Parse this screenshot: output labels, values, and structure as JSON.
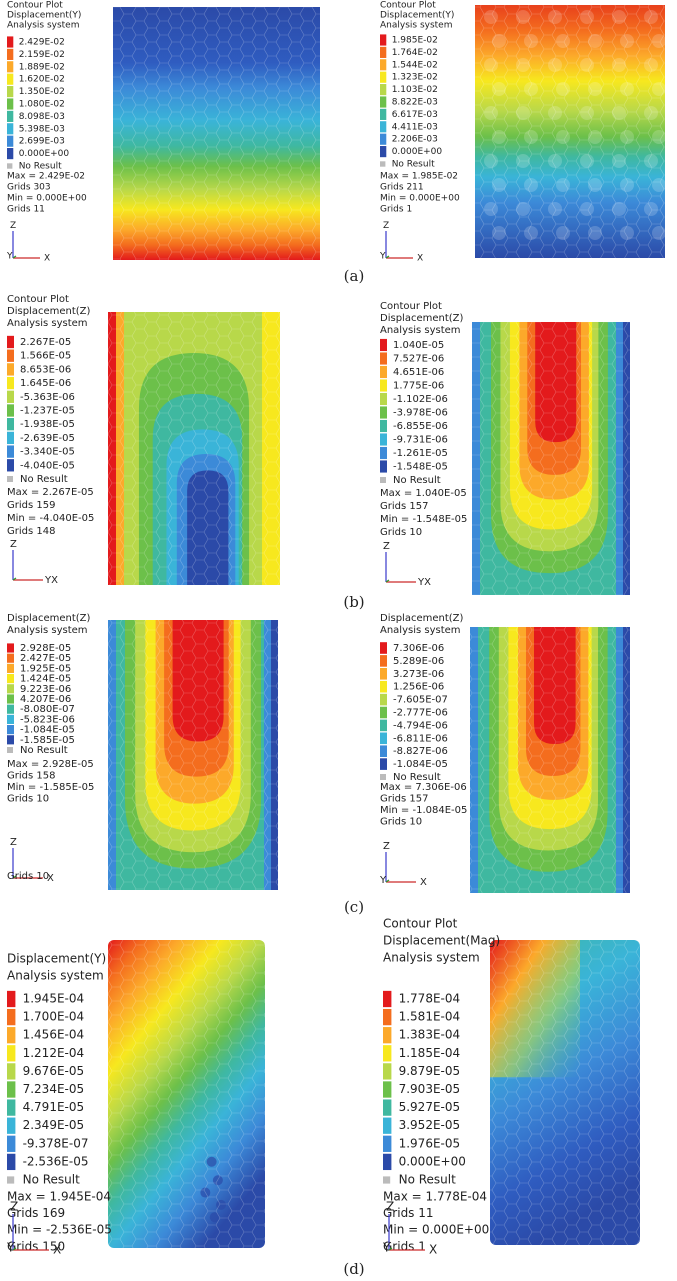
{
  "panels": [
    {
      "header": [
        "Contour Plot",
        "Displacement(Y)",
        "Analysis system"
      ],
      "legend": [
        "2.429E-02",
        "2.159E-02",
        "1.889E-02",
        "1.620E-02",
        "1.350E-02",
        "1.080E-02",
        "8.098E-03",
        "5.398E-03",
        "2.699E-03",
        "0.000E+00"
      ],
      "no_result": "No Result",
      "stats": [
        "Max = 2.429E-02",
        "Grids 303",
        "Min = 0.000E+00",
        "Grids 11"
      ],
      "axes": [
        "Z",
        "Y",
        "X"
      ]
    },
    {
      "header": [
        "Contour Plot",
        "Displacement(Y)",
        "Analysis system"
      ],
      "legend": [
        "1.985E-02",
        "1.764E-02",
        "1.544E-02",
        "1.323E-02",
        "1.103E-02",
        "8.822E-03",
        "6.617E-03",
        "4.411E-03",
        "2.206E-03",
        "0.000E+00"
      ],
      "no_result": "No Result",
      "stats": [
        "Max = 1.985E-02",
        "Grids 211",
        "Min = 0.000E+00",
        "Grids 1"
      ],
      "axes": [
        "Z",
        "Y",
        "X"
      ]
    },
    {
      "header": [
        "Contour Plot",
        "Displacement(Z)",
        "Analysis system"
      ],
      "legend": [
        "2.267E-05",
        "1.566E-05",
        "8.653E-06",
        "1.645E-06",
        "-5.363E-06",
        "-1.237E-05",
        "-1.938E-05",
        "-2.639E-05",
        "-3.340E-05",
        "-4.040E-05"
      ],
      "no_result": "No Result",
      "stats": [
        "Max = 2.267E-05",
        "Grids 159",
        "Min = -4.040E-05",
        "Grids 148"
      ],
      "axes": [
        "Z",
        "YX"
      ]
    },
    {
      "header": [
        "Contour Plot",
        "Displacement(Z)",
        "Analysis system"
      ],
      "legend": [
        "1.040E-05",
        "7.527E-06",
        "4.651E-06",
        "1.775E-06",
        "-1.102E-06",
        "-3.978E-06",
        "-6.855E-06",
        "-9.731E-06",
        "-1.261E-05",
        "-1.548E-05"
      ],
      "no_result": "No Result",
      "stats": [
        "Max = 1.040E-05",
        "Grids 157",
        "Min = -1.548E-05",
        "Grids 10"
      ],
      "axes": [
        "Z",
        "YX"
      ]
    },
    {
      "header": [
        "Displacement(Z)",
        "Analysis system"
      ],
      "legend": [
        "2.928E-05",
        "2.427E-05",
        "1.925E-05",
        "1.424E-05",
        "9.223E-06",
        "4.207E-06",
        "-8.080E-07",
        "-5.823E-06",
        "-1.084E-05",
        "-1.585E-05"
      ],
      "no_result": "No Result",
      "stats": [
        "Max = 2.928E-05",
        "Grids 158",
        "Min = -1.585E-05",
        "Grids 10"
      ],
      "axes": [
        "Z",
        "Grids 10",
        "X"
      ]
    },
    {
      "header": [
        "Displacement(Z)",
        "Analysis system"
      ],
      "legend": [
        "7.306E-06",
        "5.289E-06",
        "3.273E-06",
        "1.256E-06",
        "-7.605E-07",
        "-2.777E-06",
        "-4.794E-06",
        "-6.811E-06",
        "-8.827E-06",
        "-1.084E-05"
      ],
      "no_result": "No Result",
      "stats": [
        "Max = 7.306E-06",
        "Grids 157",
        "Min = -1.084E-05",
        "Grids 10"
      ],
      "axes": [
        "Z",
        "Y",
        "X"
      ]
    },
    {
      "header": [
        "Displacement(Y)",
        "Analysis system"
      ],
      "legend": [
        "1.945E-04",
        "1.700E-04",
        "1.456E-04",
        "1.212E-04",
        "9.676E-05",
        "7.234E-05",
        "4.791E-05",
        "2.349E-05",
        "-9.378E-07",
        "-2.536E-05"
      ],
      "no_result": "No Result",
      "stats": [
        "Max = 1.945E-04",
        "Grids 169",
        "Min = -2.536E-05",
        "Grids 150"
      ],
      "axes": [
        "Z",
        "Y",
        "X"
      ]
    },
    {
      "header": [
        "Contour Plot",
        "Displacement(Mag)",
        "Analysis system"
      ],
      "legend": [
        "1.778E-04",
        "1.581E-04",
        "1.383E-04",
        "1.185E-04",
        "9.879E-05",
        "7.903E-05",
        "5.927E-05",
        "3.952E-05",
        "1.976E-05",
        "0.000E+00"
      ],
      "no_result": "No Result",
      "stats": [
        "Max = 1.778E-04",
        "Grids 11",
        "Min = 0.000E+00",
        "Grids 1"
      ],
      "axes": [
        "Z",
        "Y",
        "X"
      ]
    }
  ],
  "captions": [
    "(a)",
    "(b)",
    "(c)",
    "(d)"
  ]
}
